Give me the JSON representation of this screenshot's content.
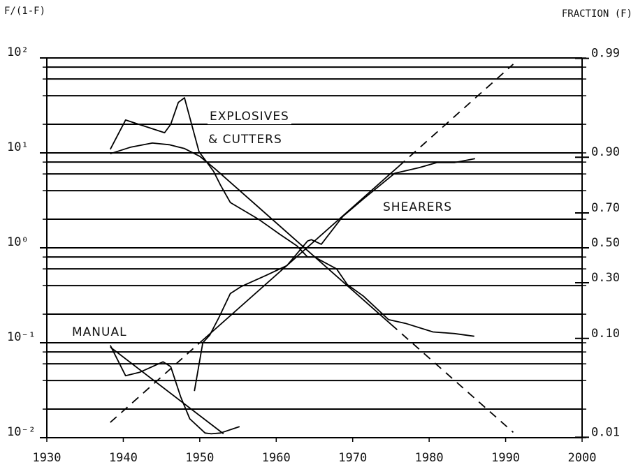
{
  "chart_data": {
    "type": "line",
    "ylabel": "F/(1-F)",
    "y2label": "FRACTION (F)",
    "xlim": [
      1930,
      2000
    ],
    "xticks": [
      1930,
      1940,
      1950,
      1960,
      1970,
      1980,
      1990,
      2000
    ],
    "ylog": true,
    "ylim": [
      0.01,
      100
    ],
    "yticks": [
      {
        "value": 0.01,
        "label": "10⁻²"
      },
      {
        "value": 0.1,
        "label": "10⁻¹"
      },
      {
        "value": 1,
        "label": "10⁰"
      },
      {
        "value": 10,
        "label": "10¹"
      },
      {
        "value": 100,
        "label": "10²"
      }
    ],
    "ygrid": [
      0.01,
      0.02,
      0.04,
      0.06,
      0.08,
      0.1,
      0.2,
      0.4,
      0.6,
      0.8,
      1,
      2,
      4,
      6,
      8,
      10,
      20,
      40,
      60,
      80,
      100
    ],
    "y2scale": "logit",
    "y2lim": [
      0.0099,
      0.9901
    ],
    "y2ticks": [
      0.01,
      {
        "value": 0.1,
        "label": "0.10"
      },
      {
        "value": 0.3,
        "label": "0.30"
      },
      {
        "value": 0.5,
        "label": "0.50"
      },
      {
        "value": 0.7,
        "label": "0.70"
      },
      {
        "value": 0.9,
        "label": "0.90"
      },
      0.99
    ],
    "annotations": [
      "EXPLOSIVES",
      "& CUTTERS",
      "SHEARERS",
      "MANUAL"
    ],
    "series": [
      {
        "color": "#000000",
        "dashed": false,
        "x": [
          1938.3,
          1940.3,
          1945.4,
          1946.2,
          1947.2,
          1948,
          1949.9,
          1951.8,
          1952.7,
          1954,
          1957.7,
          1960.4,
          1962.7,
          1964.1,
          1965,
          1967.9,
          1969.3,
          1971.4,
          1974.7,
          1976.9,
          1980.5,
          1983.3,
          1985.9
        ],
        "values": [
          10.9,
          22.2,
          16.3,
          20,
          34,
          38,
          10.3,
          6.4,
          4.6,
          3.0,
          2.0,
          1.4,
          1.05,
          0.8,
          0.8,
          0.6,
          0.41,
          0.31,
          0.175,
          0.16,
          0.13,
          0.125,
          0.117
        ]
      },
      {
        "color": "#000000",
        "dashed": false,
        "x": [
          1938.3,
          1941,
          1943.8,
          1946,
          1948,
          1950,
          1952,
          1975
        ],
        "values": [
          9.8,
          11.5,
          12.7,
          12.2,
          11.1,
          9.2,
          6.8,
          0.157
        ]
      },
      {
        "color": "#000000",
        "dashed": true,
        "x": [
          1975,
          1991
        ],
        "values": [
          0.157,
          0.0114
        ]
      },
      {
        "color": "#000000",
        "dashed": false,
        "x": [
          1938.3,
          1940.3,
          1942.2,
          1945.2,
          1946.2,
          1947.5,
          1948.7,
          1950.7,
          1951.5,
          1952.7,
          1955.2
        ],
        "values": [
          0.094,
          0.045,
          0.049,
          0.063,
          0.056,
          0.027,
          0.0158,
          0.0112,
          0.011,
          0.0112,
          0.0131
        ]
      },
      {
        "color": "#000000",
        "dashed": false,
        "x": [
          1938.3,
          1953.1
        ],
        "values": [
          0.09,
          0.011
        ]
      },
      {
        "color": "#000000",
        "dashed": false,
        "x": [
          1949.3,
          1950.4,
          1951.3,
          1952.5,
          1954,
          1955.4,
          1958.6,
          1961.4,
          1964.1,
          1964.6,
          1965.9,
          1968.7,
          1971.4,
          1975.5,
          1978.7,
          1981,
          1983.3,
          1986
        ],
        "values": [
          0.031,
          0.1,
          0.12,
          0.184,
          0.33,
          0.39,
          0.51,
          0.65,
          1.18,
          1.22,
          1.09,
          2.14,
          3.27,
          6.1,
          7.0,
          7.9,
          7.9,
          8.7
        ]
      },
      {
        "color": "#000000",
        "dashed": true,
        "x": [
          1938.3,
          1950
        ],
        "values": [
          0.0145,
          0.1
        ]
      },
      {
        "color": "#000000",
        "dashed": false,
        "x": [
          1950,
          1976
        ],
        "values": [
          0.1,
          7.2
        ]
      },
      {
        "color": "#000000",
        "dashed": true,
        "x": [
          1976,
          1991
        ],
        "values": [
          7.2,
          86
        ]
      }
    ]
  }
}
